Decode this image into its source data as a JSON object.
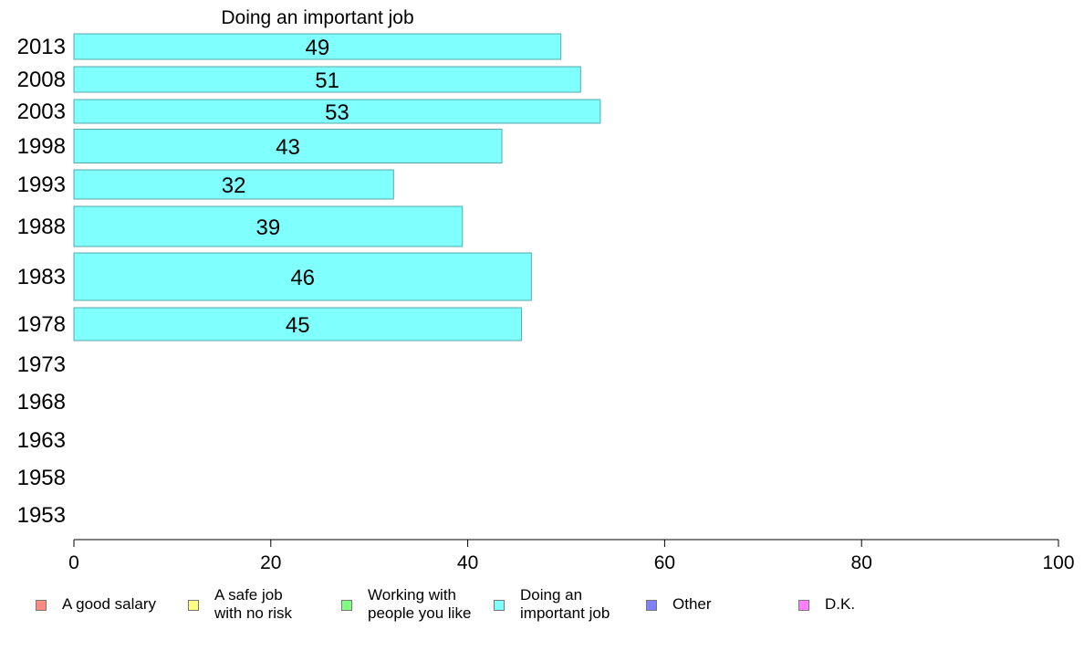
{
  "chart_data": {
    "type": "bar",
    "orientation": "horizontal",
    "title": "Doing an important job",
    "categories": [
      "2013",
      "2008",
      "2003",
      "1998",
      "1993",
      "1988",
      "1983",
      "1978",
      "1973",
      "1968",
      "1963",
      "1958",
      "1953"
    ],
    "series": [
      {
        "name": "Doing an important job",
        "color": "#80ffff",
        "values": [
          49,
          51,
          53,
          43,
          32,
          39,
          46,
          45,
          null,
          null,
          null,
          null,
          null
        ],
        "labels": [
          "49",
          "51",
          "53",
          "43",
          "32",
          "39",
          "46",
          "45",
          "",
          "",
          "",
          "",
          ""
        ]
      }
    ],
    "xlim": [
      0,
      100
    ],
    "xticks": [
      "0",
      "20",
      "40",
      "60",
      "80",
      "100"
    ],
    "xlabel": "",
    "ylabel": "",
    "grid": false,
    "legend_position": "bottom"
  },
  "legend": [
    {
      "label": "A good salary",
      "color": "#ff8a80"
    },
    {
      "label": "A safe job\nwith no risk",
      "color": "#ffff80"
    },
    {
      "label": "Working with\npeople you like",
      "color": "#80ff80"
    },
    {
      "label": "Doing an\nimportant job",
      "color": "#80ffff"
    },
    {
      "label": "Other",
      "color": "#8080ff"
    },
    {
      "label": "D.K.",
      "color": "#ff80ff"
    }
  ]
}
